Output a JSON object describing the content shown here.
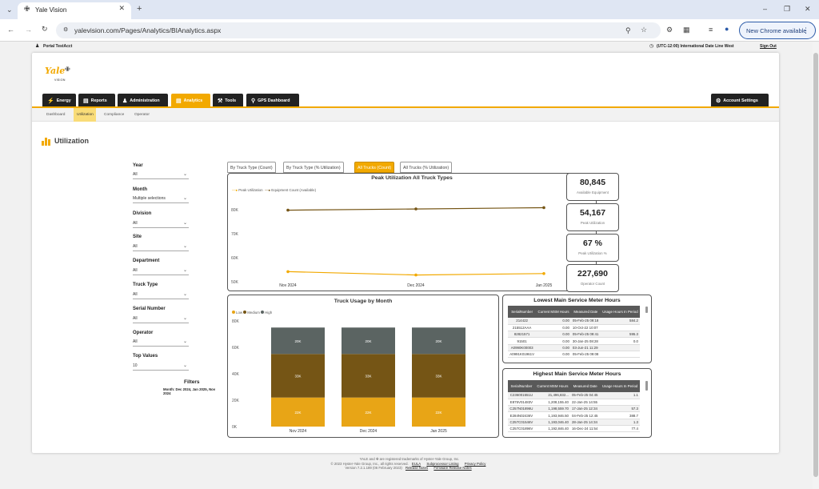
{
  "browser": {
    "tab_title": "Yale Vision",
    "url": "yalevision.com/Pages/Analytics/BIAnalytics.aspx",
    "update_button": "New Chrome available"
  },
  "portal": {
    "user": "Portal TestAcct",
    "timezone": "(UTC-12:00) International Date Line West",
    "signout": "Sign Out"
  },
  "brand": {
    "logo": "Yale",
    "sub": "VISION"
  },
  "nav": {
    "tabs": [
      {
        "label": "Energy",
        "icon": "bolt-icon"
      },
      {
        "label": "Reports",
        "icon": "bar-chart-icon"
      },
      {
        "label": "Administration",
        "icon": "person-icon"
      },
      {
        "label": "Analytics",
        "icon": "analytics-icon"
      },
      {
        "label": "Tools",
        "icon": "wrench-icon"
      },
      {
        "label": "GPS Dashboard",
        "icon": "map-pin-icon"
      }
    ],
    "account": "Account Settings",
    "subtabs": [
      "Dashboard",
      "Utilization",
      "Compliance",
      "Operator"
    ]
  },
  "page": {
    "title": "Utilization"
  },
  "filters": {
    "items": [
      {
        "label": "Year",
        "value": "All"
      },
      {
        "label": "Month",
        "value": "Multiple selections"
      },
      {
        "label": "Division",
        "value": "All"
      },
      {
        "label": "Site",
        "value": "All"
      },
      {
        "label": "Department",
        "value": "All"
      },
      {
        "label": "Truck Type",
        "value": "All"
      },
      {
        "label": "Serial Number",
        "value": "All"
      },
      {
        "label": "Operator",
        "value": "All"
      },
      {
        "label": "Top Values",
        "value": "10"
      }
    ],
    "summary_title": "Filters",
    "summary_text": "Month: Dec 2024, Jan 2025, Nov 2024"
  },
  "report_tabs": [
    "By Truck Type (Count)",
    "By Truck Type (% Utilization)",
    "All Trucks (Count)",
    "All Trucks (% Utilization)"
  ],
  "kpis": [
    {
      "value": "80,845",
      "label": "Available Equipment"
    },
    {
      "value": "54,167",
      "label": "Peak Utilization"
    },
    {
      "value": "67 %",
      "label": "Peak Utilization %"
    },
    {
      "value": "227,690",
      "label": "Operator Count"
    }
  ],
  "colors": {
    "accent": "#f2a900",
    "low": "#e8a516",
    "medium": "#755515",
    "high": "#5b6462"
  },
  "chart_data": [
    {
      "type": "line",
      "title": "Peak Utilization All Truck Types",
      "categories": [
        "Nov 2024",
        "Dec 2024",
        "Jan 2025"
      ],
      "series": [
        {
          "name": "Peak Utilization",
          "values": [
            54200,
            52800,
            53400
          ]
        },
        {
          "name": "Equipment Count (Available)",
          "values": [
            79800,
            80300,
            80845
          ]
        }
      ],
      "y_ticks": [
        "80K",
        "70K",
        "60K",
        "50K"
      ],
      "ylim": [
        50000,
        85000
      ],
      "legend": "top-left"
    },
    {
      "type": "bar",
      "stacked": true,
      "title": "Truck Usage by Month",
      "categories": [
        "Nov 2024",
        "Dec 2024",
        "Jan 2025"
      ],
      "series": [
        {
          "name": "Low",
          "values": [
            22000,
            22000,
            22000
          ],
          "labels": [
            "22K",
            "22K",
            "22K"
          ]
        },
        {
          "name": "Medium",
          "values": [
            33000,
            33000,
            33000
          ],
          "labels": [
            "33K",
            "33K",
            "33K"
          ]
        },
        {
          "name": "High",
          "values": [
            20000,
            20000,
            20000
          ],
          "labels": [
            "20K",
            "20K",
            "20K"
          ]
        }
      ],
      "y_ticks": [
        "80K",
        "60K",
        "40K",
        "20K",
        "0K"
      ],
      "ylim": [
        0,
        80000
      ],
      "legend": "top-left"
    }
  ],
  "tables": {
    "headers": [
      "SerialNumber",
      "Current MSM Hours",
      "Measured Date",
      "Usage Hours In Period"
    ],
    "lowest": {
      "title": "Lowest Main Service Meter Hours",
      "rows": [
        [
          "214422",
          "0.00",
          "05-Feb-25 09:18",
          "584.2"
        ],
        [
          "215512AAA",
          "0.00",
          "10-Oct-22 10:07",
          ""
        ],
        [
          "82821571",
          "0.00",
          "05-Feb-25 09:41",
          "595.3"
        ],
        [
          "91501",
          "0.00",
          "30-Jan-25 08:28",
          "0.0"
        ],
        [
          "A0990K00003",
          "0.00",
          "03-Jun-21 11:29",
          ""
        ],
        [
          "A0991K01961V",
          "0.00",
          "05-Feb-25 09:08",
          ""
        ]
      ]
    },
    "highest": {
      "title": "Highest Main Service Meter Hours",
      "rows": [
        [
          "C236001551U",
          "21,496,832...",
          "05-Feb-25 04:45",
          "1.1"
        ],
        [
          "E875V01483V",
          "1,208,155.40",
          "22-Jan-25 14:55",
          ""
        ],
        [
          "C257N01896U",
          "1,198,559.70",
          "17-Jan-25 12:34",
          "57.3"
        ],
        [
          "E284N02436V",
          "1,193,946.50",
          "04-Feb-25 12:45",
          "388.7"
        ],
        [
          "C257C01546V",
          "1,193,046.40",
          "28-Jan-25 14:34",
          "1.3"
        ],
        [
          "C257C01896V",
          "1,192,846.40",
          "16-Dec-24 11:54",
          "77.4"
        ]
      ]
    }
  },
  "footer": {
    "line1": "YALE and ✙ are registered trademarks of Hyster-Yale Group, Inc.",
    "line2": "© 2023 Hyster-Yale Group, Inc., all rights reserved.",
    "eula": "EULA",
    "sub_listing": "Subprocessor Listing",
    "privacy": "Privacy Policy",
    "version": "Version 7.2.1.189 (06 February 2023)",
    "release": "Release Notes",
    "firmware": "Firmware Release Notes"
  }
}
